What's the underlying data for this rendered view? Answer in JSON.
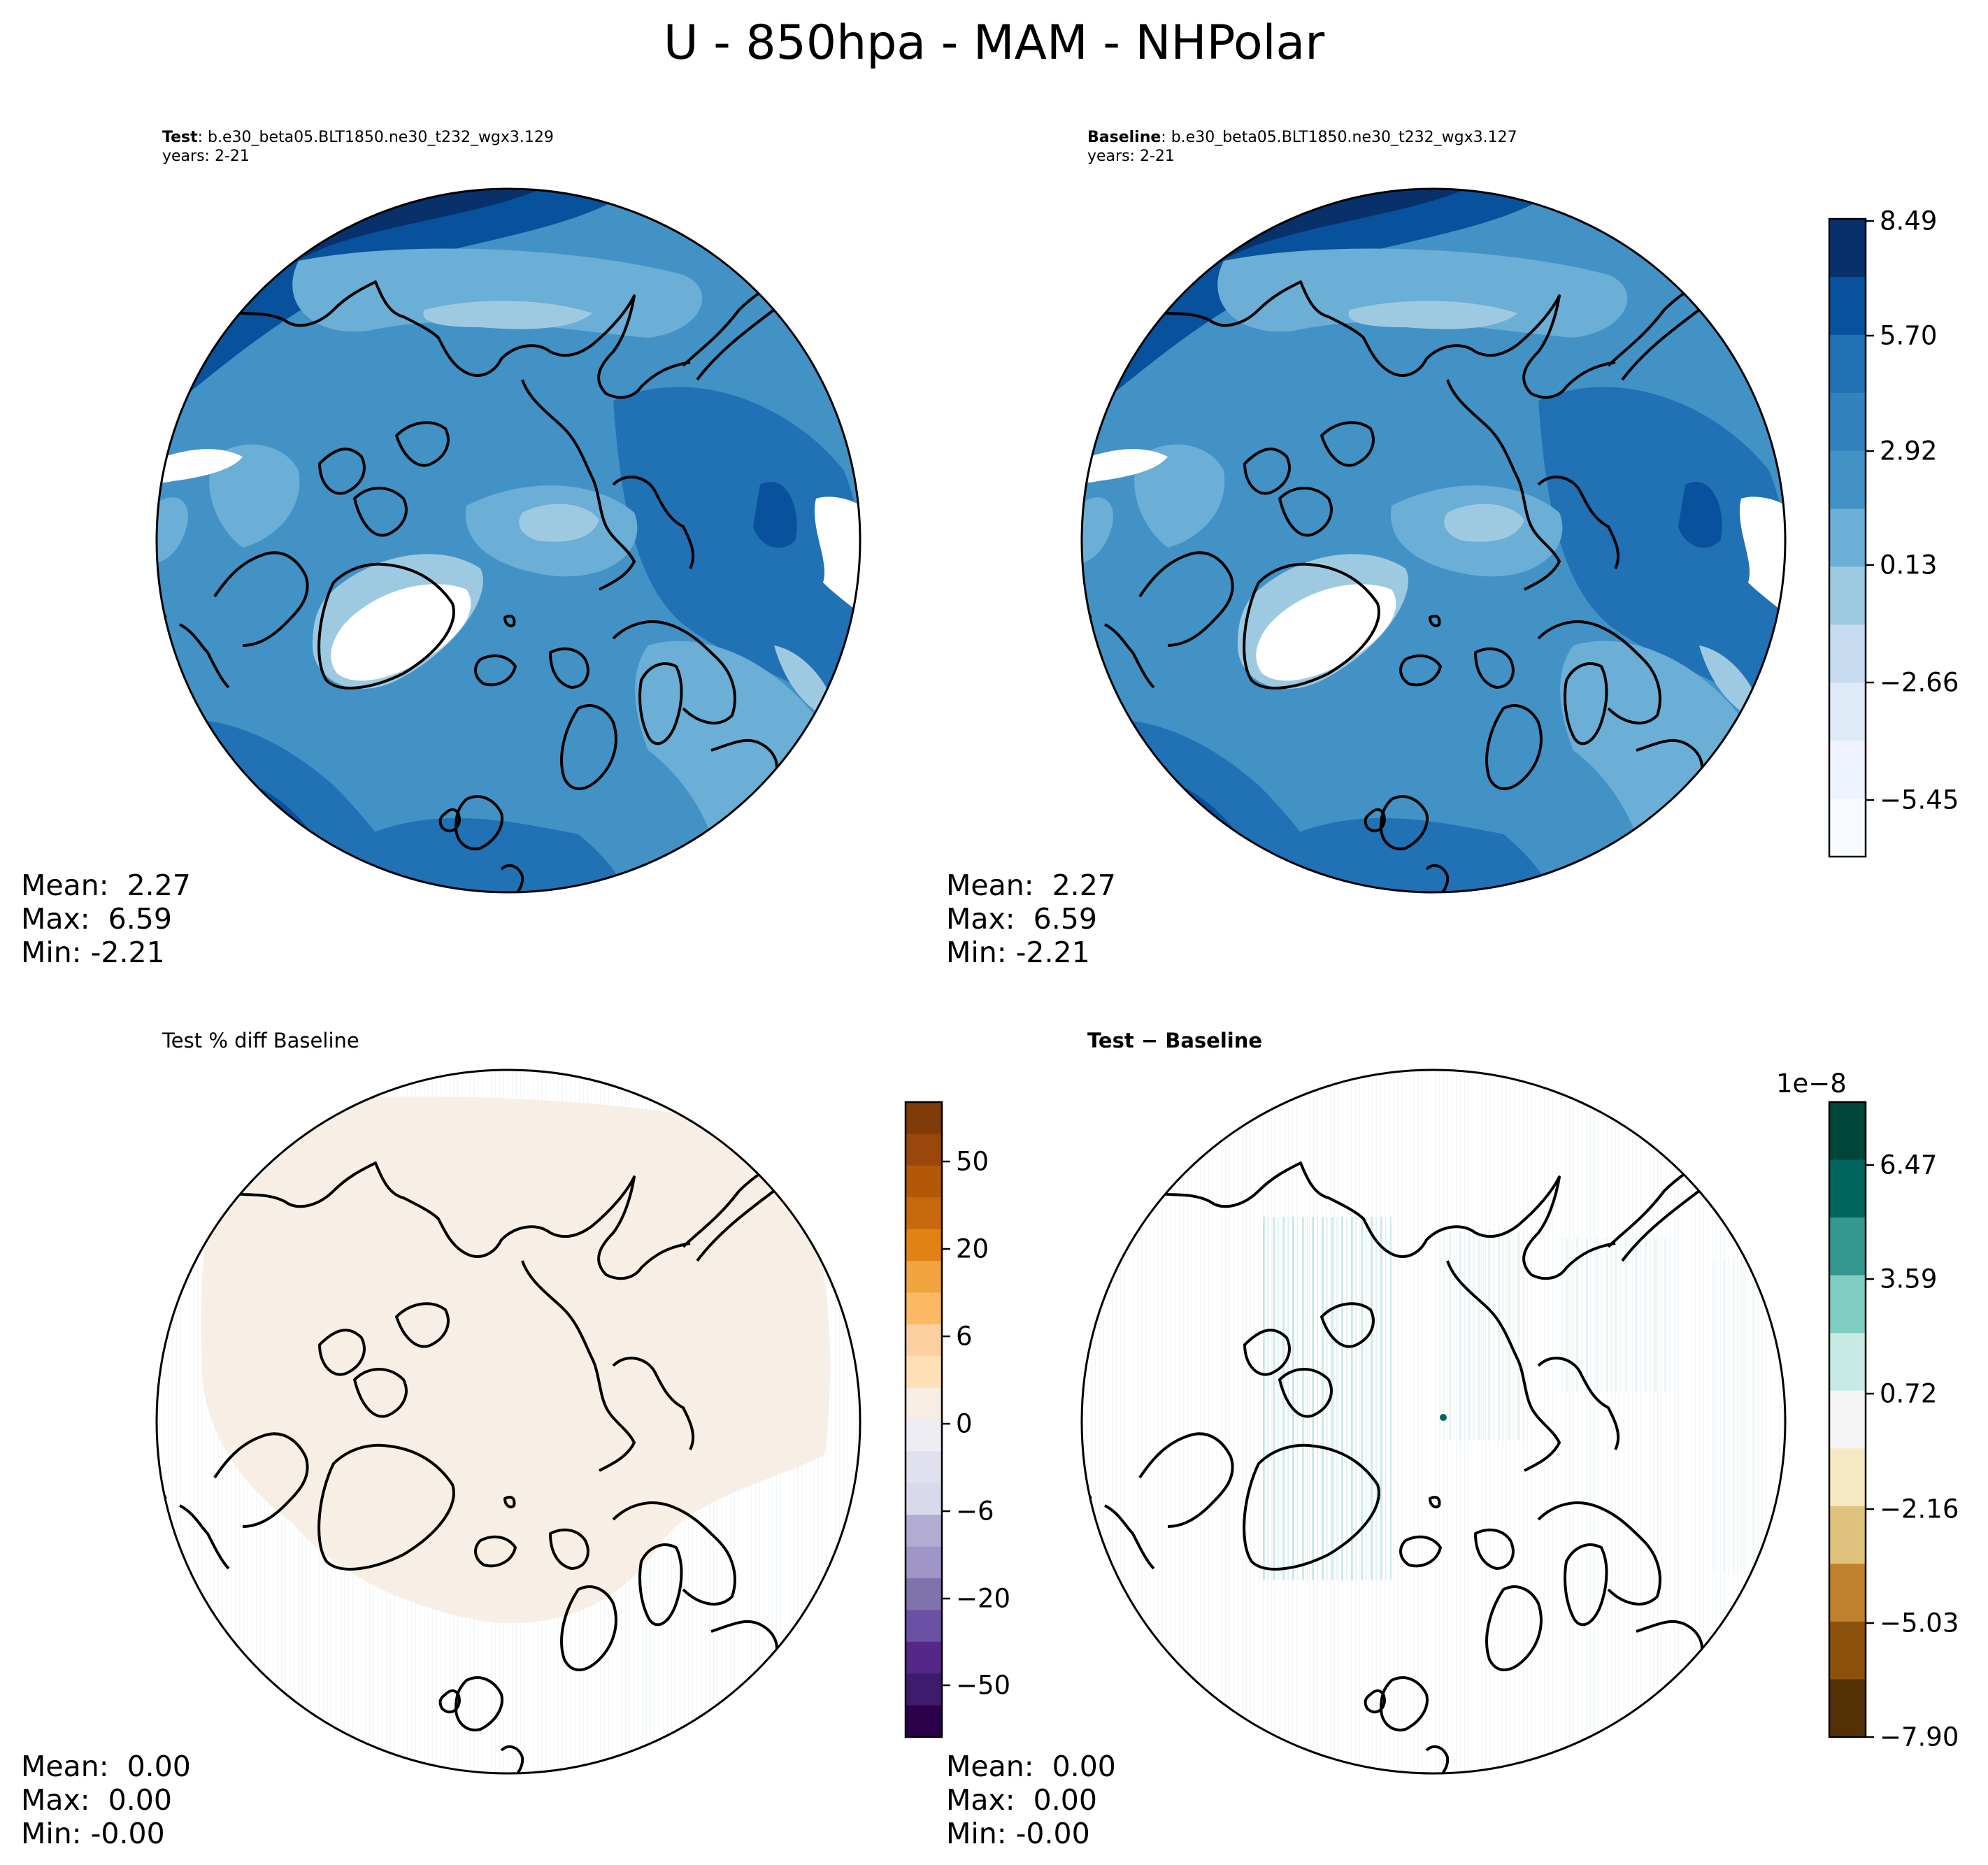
{
  "figure": {
    "title": "U - 850hpa - MAM - NHPolar"
  },
  "panels": [
    {
      "id": "test",
      "label_bold": "Test",
      "label_rest": ": b.e30_beta05.BLT1850.ne30_t232_wgx3.129",
      "years": "years: 2-21",
      "stats": {
        "mean": "Mean:  2.27",
        "max": "Max:  6.59",
        "min": "Min: -2.21"
      }
    },
    {
      "id": "baseline",
      "label_bold": "Baseline",
      "label_rest": ": b.e30_beta05.BLT1850.ne30_t232_wgx3.127",
      "years": "years: 2-21",
      "stats": {
        "mean": "Mean:  2.27",
        "max": "Max:  6.59",
        "min": "Min: -2.21"
      }
    },
    {
      "id": "pctdiff",
      "title": "Test % diff Baseline",
      "stats": {
        "mean": "Mean:  0.00",
        "max": "Max:  0.00",
        "min": "Min: -0.00"
      }
    },
    {
      "id": "diff",
      "title": "Test − Baseline",
      "stats": {
        "mean": "Mean:  0.00",
        "max": "Max:  0.00",
        "min": "Min: -0.00"
      }
    }
  ],
  "colorbars": {
    "field": {
      "ticks": [
        "8.49",
        "5.70",
        "2.92",
        "0.13",
        "−2.66",
        "−5.45"
      ],
      "colors": [
        "#08306b",
        "#08519c",
        "#2171b5",
        "#3182bd",
        "#4292c6",
        "#6baed6",
        "#9ecae1",
        "#c6dbef",
        "#deebf7",
        "#eff3ff",
        "#f7fbff"
      ]
    },
    "pctdiff": {
      "ticks": [
        "50",
        "20",
        "6",
        "0",
        "−6",
        "−20",
        "−50"
      ],
      "colors": [
        "#7f3b08",
        "#99470a",
        "#b35806",
        "#c8680c",
        "#e08214",
        "#f1a340",
        "#fdb863",
        "#fdd0a2",
        "#fee0b6",
        "#f7ede2",
        "#eeedf4",
        "#e0e0ef",
        "#d8daeb",
        "#b2abd2",
        "#9f95c6",
        "#8073ac",
        "#6a51a3",
        "#542788",
        "#3f1b6e",
        "#2d004b"
      ]
    },
    "diff": {
      "exponent": "1e−8",
      "ticks": [
        "6.47",
        "3.59",
        "0.72",
        "−2.16",
        "−5.03",
        "−7.90"
      ],
      "colors": [
        "#00453a",
        "#01665e",
        "#35978f",
        "#80cdc1",
        "#c7eae5",
        "#f5f5f5",
        "#f6e8c3",
        "#dfc27d",
        "#bf812d",
        "#8c510a",
        "#543005"
      ]
    }
  },
  "map_colors": {
    "field_base": "#4292c6",
    "pct_fill": "#f7efe5",
    "diff_streak": "#80cdc1",
    "land_mask": "#ffffff"
  }
}
